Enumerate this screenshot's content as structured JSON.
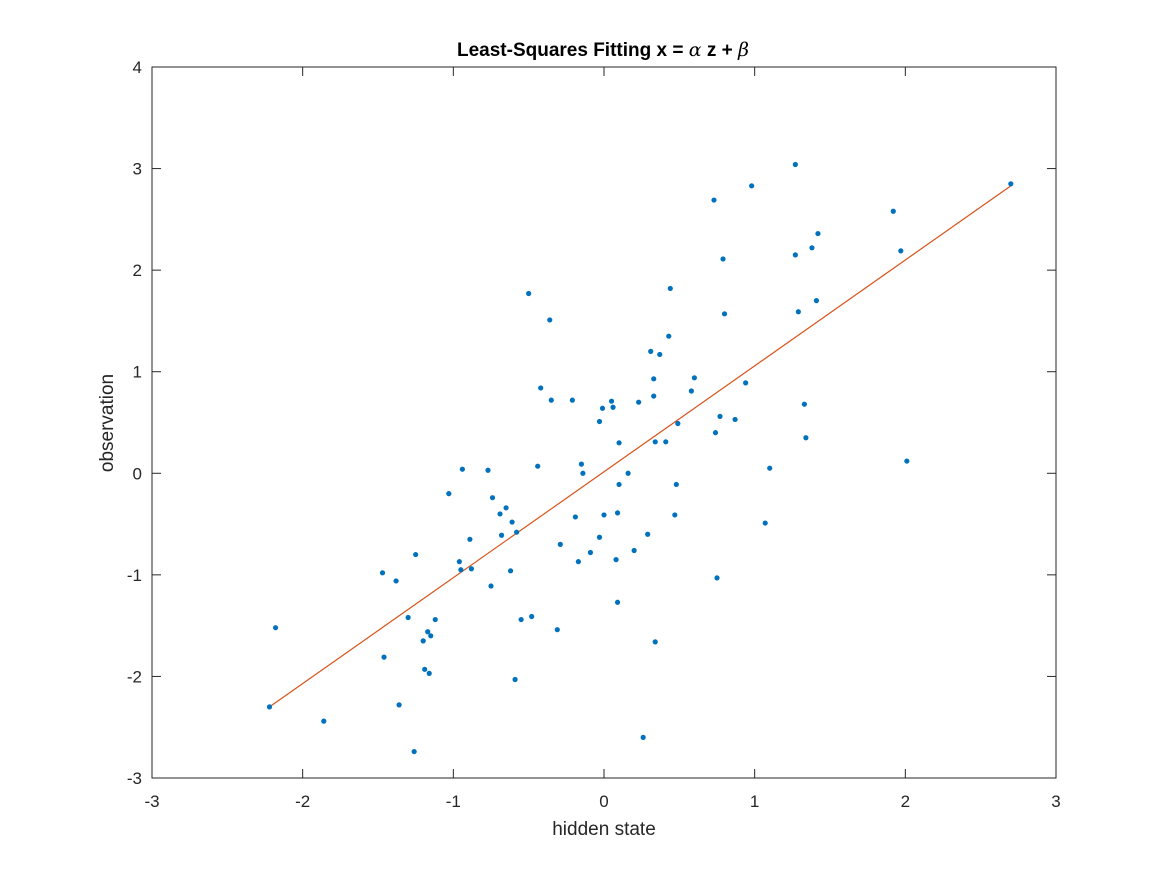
{
  "chart_data": {
    "type": "scatter",
    "title": {
      "text": "Least-Squares Fitting x = ",
      "alpha": "α",
      "middle": " z + ",
      "beta": "β"
    },
    "xlabel": "hidden state",
    "ylabel": "observation",
    "xlim": [
      -3,
      3
    ],
    "ylim": [
      -3,
      4
    ],
    "xticks": [
      -3,
      -2,
      -1,
      0,
      1,
      2,
      3
    ],
    "yticks": [
      -3,
      -2,
      -1,
      0,
      1,
      2,
      3,
      4
    ],
    "grid": false,
    "colors": {
      "points": "#0072BD",
      "fit": "#D95319",
      "axes": "#262626"
    },
    "fit_line": {
      "x": [
        -2.22,
        2.7
      ],
      "y": [
        -2.3,
        2.83
      ]
    },
    "points": [
      [
        -2.22,
        -2.3
      ],
      [
        -2.18,
        -1.52
      ],
      [
        -1.86,
        -2.44
      ],
      [
        -1.47,
        -0.98
      ],
      [
        -1.46,
        -1.81
      ],
      [
        -1.38,
        -1.06
      ],
      [
        -1.36,
        -2.28
      ],
      [
        -1.3,
        -1.42
      ],
      [
        -1.26,
        -2.74
      ],
      [
        -1.25,
        -0.8
      ],
      [
        -1.2,
        -1.65
      ],
      [
        -1.19,
        -1.93
      ],
      [
        -1.17,
        -1.56
      ],
      [
        -1.16,
        -1.97
      ],
      [
        -1.15,
        -1.6
      ],
      [
        -1.12,
        -1.44
      ],
      [
        -1.03,
        -0.2
      ],
      [
        -0.96,
        -0.87
      ],
      [
        -0.95,
        -0.95
      ],
      [
        -0.94,
        0.04
      ],
      [
        -0.89,
        -0.65
      ],
      [
        -0.88,
        -0.94
      ],
      [
        -0.77,
        0.03
      ],
      [
        -0.75,
        -1.11
      ],
      [
        -0.74,
        -0.24
      ],
      [
        -0.69,
        -0.4
      ],
      [
        -0.68,
        -0.61
      ],
      [
        -0.65,
        -0.34
      ],
      [
        -0.62,
        -0.96
      ],
      [
        -0.61,
        -0.48
      ],
      [
        -0.59,
        -2.03
      ],
      [
        -0.58,
        -0.58
      ],
      [
        -0.55,
        -1.44
      ],
      [
        -0.5,
        1.77
      ],
      [
        -0.48,
        -1.41
      ],
      [
        -0.44,
        0.07
      ],
      [
        -0.42,
        0.84
      ],
      [
        -0.36,
        1.51
      ],
      [
        -0.35,
        0.72
      ],
      [
        -0.31,
        -1.54
      ],
      [
        -0.29,
        -0.7
      ],
      [
        -0.21,
        0.72
      ],
      [
        -0.19,
        -0.43
      ],
      [
        -0.17,
        -0.87
      ],
      [
        -0.15,
        0.09
      ],
      [
        -0.14,
        0.0
      ],
      [
        -0.09,
        -0.78
      ],
      [
        -0.03,
        0.51
      ],
      [
        -0.03,
        -0.63
      ],
      [
        -0.01,
        0.64
      ],
      [
        0.0,
        -0.41
      ],
      [
        0.05,
        0.71
      ],
      [
        0.06,
        0.65
      ],
      [
        0.08,
        -0.85
      ],
      [
        0.09,
        -0.39
      ],
      [
        0.09,
        -1.27
      ],
      [
        0.1,
        0.3
      ],
      [
        0.1,
        -0.11
      ],
      [
        0.16,
        0.0
      ],
      [
        0.2,
        -0.76
      ],
      [
        0.23,
        0.7
      ],
      [
        0.26,
        -2.6
      ],
      [
        0.29,
        -0.6
      ],
      [
        0.31,
        1.2
      ],
      [
        0.33,
        0.93
      ],
      [
        0.33,
        0.76
      ],
      [
        0.34,
        0.31
      ],
      [
        0.34,
        -1.66
      ],
      [
        0.37,
        1.17
      ],
      [
        0.41,
        0.31
      ],
      [
        0.43,
        1.35
      ],
      [
        0.44,
        1.82
      ],
      [
        0.47,
        -0.41
      ],
      [
        0.48,
        -0.11
      ],
      [
        0.49,
        0.49
      ],
      [
        0.58,
        0.81
      ],
      [
        0.6,
        0.94
      ],
      [
        0.73,
        2.69
      ],
      [
        0.74,
        0.4
      ],
      [
        0.75,
        -1.03
      ],
      [
        0.77,
        0.56
      ],
      [
        0.79,
        2.11
      ],
      [
        0.8,
        1.57
      ],
      [
        0.87,
        0.53
      ],
      [
        0.94,
        0.89
      ],
      [
        0.98,
        2.83
      ],
      [
        1.07,
        -0.49
      ],
      [
        1.1,
        0.05
      ],
      [
        1.27,
        3.04
      ],
      [
        1.27,
        2.15
      ],
      [
        1.29,
        1.59
      ],
      [
        1.33,
        0.68
      ],
      [
        1.34,
        0.35
      ],
      [
        1.38,
        2.22
      ],
      [
        1.41,
        1.7
      ],
      [
        1.42,
        2.36
      ],
      [
        1.92,
        2.58
      ],
      [
        1.97,
        2.19
      ],
      [
        2.01,
        0.12
      ],
      [
        2.7,
        2.85
      ]
    ]
  }
}
